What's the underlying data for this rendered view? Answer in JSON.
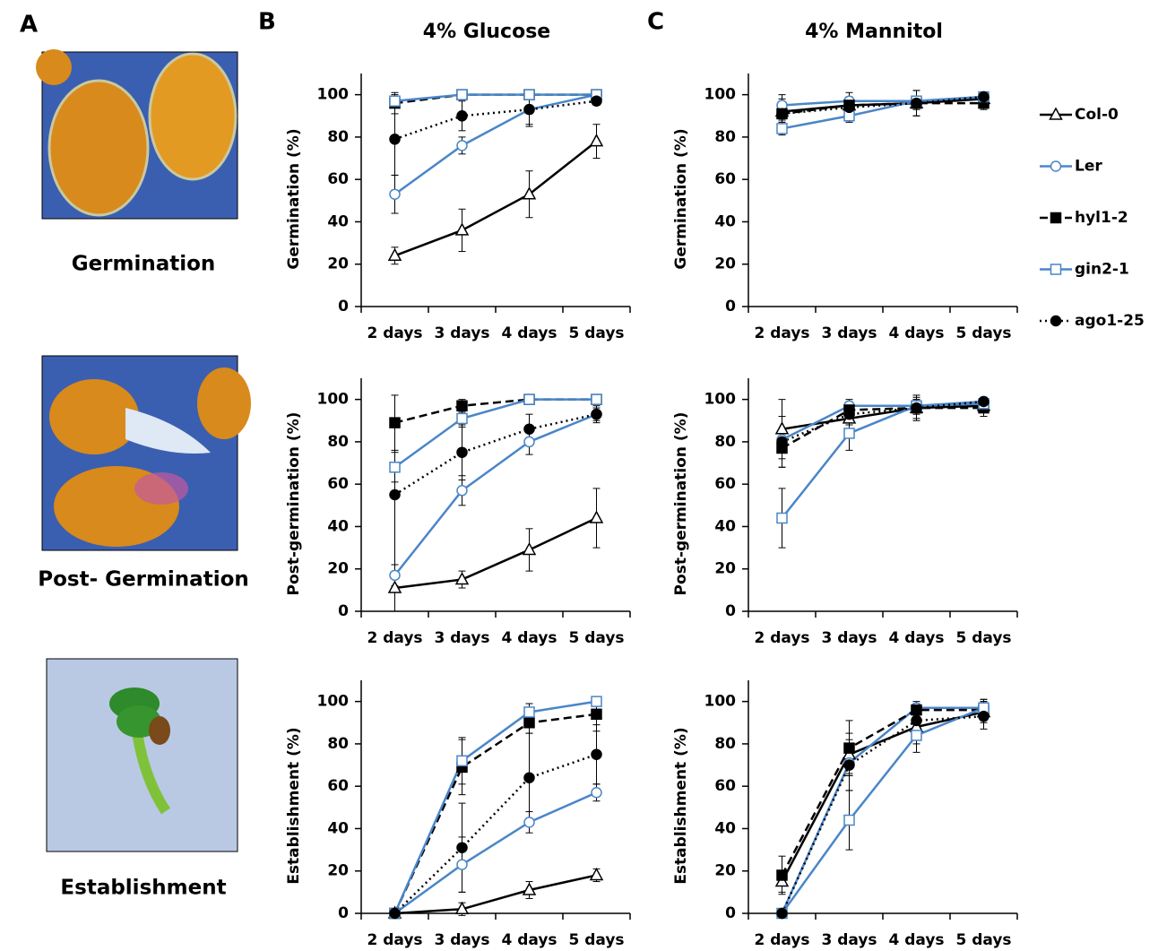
{
  "panels": {
    "a": "A",
    "b": "B",
    "c": "C",
    "photo_labels": [
      "Germination",
      "Post- Germination",
      "Establishment"
    ]
  },
  "legend": {
    "position": "right",
    "entries": [
      {
        "name": "Col-0",
        "color": "#000000",
        "dash": "solid",
        "marker": "triangle-open"
      },
      {
        "name": "Ler",
        "color": "#4a86c8",
        "dash": "solid",
        "marker": "circle-open"
      },
      {
        "name": "hyl1-2",
        "color": "#000000",
        "dash": "dashed",
        "marker": "square-filled"
      },
      {
        "name": "gin2-1",
        "color": "#4a86c8",
        "dash": "solid",
        "marker": "square-open"
      },
      {
        "name": "ago1-25",
        "color": "#000000",
        "dash": "dotted",
        "marker": "circle-filled"
      }
    ]
  },
  "chart_data": [
    {
      "type": "line",
      "title": "4% Glucose",
      "y_label": "Germination (%)",
      "categories": [
        "2 days",
        "3 days",
        "4 days",
        "5 days"
      ],
      "ylim": [
        0,
        110
      ],
      "yticks": [
        0,
        20,
        40,
        60,
        80,
        100
      ],
      "series": [
        {
          "values": [
            24,
            36,
            53,
            78
          ],
          "errors": [
            4,
            10,
            11,
            8
          ]
        },
        {
          "values": [
            53,
            76,
            93,
            100
          ],
          "errors": [
            9,
            4,
            7,
            1
          ]
        },
        {
          "values": [
            96,
            100,
            100,
            100
          ],
          "errors": [
            5,
            1,
            1,
            1
          ]
        },
        {
          "values": [
            97,
            100,
            100,
            100
          ],
          "errors": [
            3,
            1,
            1,
            1
          ]
        },
        {
          "values": [
            79,
            90,
            93,
            97
          ],
          "errors": [
            17,
            7,
            8,
            2
          ]
        }
      ]
    },
    {
      "type": "line",
      "title": "4% Mannitol",
      "y_label": "Germination (%)",
      "categories": [
        "2 days",
        "3 days",
        "4 days",
        "5 days"
      ],
      "ylim": [
        0,
        110
      ],
      "yticks": [
        0,
        20,
        40,
        60,
        80,
        100
      ],
      "series": [
        {
          "values": [
            92,
            95,
            96,
            98
          ],
          "errors": [
            8,
            6,
            6,
            3
          ]
        },
        {
          "values": [
            95,
            97,
            97,
            99
          ],
          "errors": [
            3,
            2,
            2,
            1
          ]
        },
        {
          "values": [
            91,
            95,
            96,
            96
          ],
          "errors": [
            3,
            3,
            3,
            3
          ]
        },
        {
          "values": [
            84,
            90,
            97,
            99
          ],
          "errors": [
            3,
            3,
            2,
            1
          ]
        },
        {
          "values": [
            91,
            94,
            96,
            99
          ],
          "errors": [
            4,
            4,
            6,
            2
          ]
        }
      ]
    },
    {
      "type": "line",
      "y_label": "Post-germination (%)",
      "categories": [
        "2 days",
        "3 days",
        "4 days",
        "5 days"
      ],
      "ylim": [
        0,
        110
      ],
      "yticks": [
        0,
        20,
        40,
        60,
        80,
        100
      ],
      "series": [
        {
          "values": [
            11,
            15,
            29,
            44
          ],
          "errors": [
            11,
            4,
            10,
            14
          ]
        },
        {
          "values": [
            17,
            57,
            80,
            93
          ],
          "errors": [
            5,
            7,
            6,
            3
          ]
        },
        {
          "values": [
            89,
            97,
            100,
            100
          ],
          "errors": [
            13,
            3,
            1,
            1
          ]
        },
        {
          "values": [
            68,
            91,
            100,
            100
          ],
          "errors": [
            7,
            4,
            1,
            1
          ]
        },
        {
          "values": [
            55,
            75,
            86,
            93
          ],
          "errors": [
            33,
            13,
            7,
            4
          ]
        }
      ]
    },
    {
      "type": "line",
      "y_label": "Post-germination (%)",
      "categories": [
        "2 days",
        "3 days",
        "4 days",
        "5 days"
      ],
      "ylim": [
        0,
        110
      ],
      "yticks": [
        0,
        20,
        40,
        60,
        80,
        100
      ],
      "series": [
        {
          "values": [
            86,
            91,
            96,
            97
          ],
          "errors": [
            14,
            5,
            6,
            3
          ]
        },
        {
          "values": [
            81,
            97,
            97,
            99
          ],
          "errors": [
            4,
            3,
            3,
            2
          ]
        },
        {
          "values": [
            77,
            95,
            96,
            96
          ],
          "errors": [
            9,
            4,
            3,
            4
          ]
        },
        {
          "values": [
            44,
            84,
            97,
            98
          ],
          "errors": [
            14,
            8,
            3,
            2
          ]
        },
        {
          "values": [
            80,
            93,
            96,
            99
          ],
          "errors": [
            12,
            5,
            5,
            2
          ]
        }
      ]
    },
    {
      "type": "line",
      "y_label": "Establishment (%)",
      "categories": [
        "2 days",
        "3 days",
        "4 days",
        "5 days"
      ],
      "ylim": [
        0,
        110
      ],
      "yticks": [
        0,
        20,
        40,
        60,
        80,
        100
      ],
      "series": [
        {
          "values": [
            0,
            2,
            11,
            18
          ],
          "errors": [
            0,
            3,
            4,
            3
          ]
        },
        {
          "values": [
            0,
            23,
            43,
            57
          ],
          "errors": [
            0,
            13,
            5,
            4
          ]
        },
        {
          "values": [
            0,
            69,
            90,
            94
          ],
          "errors": [
            0,
            13,
            5,
            8
          ]
        },
        {
          "values": [
            0,
            72,
            95,
            100
          ],
          "errors": [
            0,
            11,
            4,
            1
          ]
        },
        {
          "values": [
            0,
            31,
            64,
            75
          ],
          "errors": [
            0,
            21,
            21,
            14
          ]
        }
      ]
    },
    {
      "type": "line",
      "y_label": "Establishment (%)",
      "categories": [
        "2 days",
        "3 days",
        "4 days",
        "5 days"
      ],
      "ylim": [
        0,
        110
      ],
      "yticks": [
        0,
        20,
        40,
        60,
        80,
        100
      ],
      "series": [
        {
          "values": [
            15,
            75,
            88,
            95
          ],
          "errors": [
            5,
            10,
            8,
            5
          ]
        },
        {
          "values": [
            0,
            71,
            97,
            97
          ],
          "errors": [
            2,
            5,
            3,
            4
          ]
        },
        {
          "values": [
            18,
            78,
            96,
            96
          ],
          "errors": [
            9,
            13,
            3,
            5
          ]
        },
        {
          "values": [
            0,
            44,
            84,
            97
          ],
          "errors": [
            1,
            14,
            8,
            3
          ]
        },
        {
          "values": [
            0,
            70,
            91,
            93
          ],
          "errors": [
            1,
            12,
            6,
            6
          ]
        }
      ]
    }
  ]
}
